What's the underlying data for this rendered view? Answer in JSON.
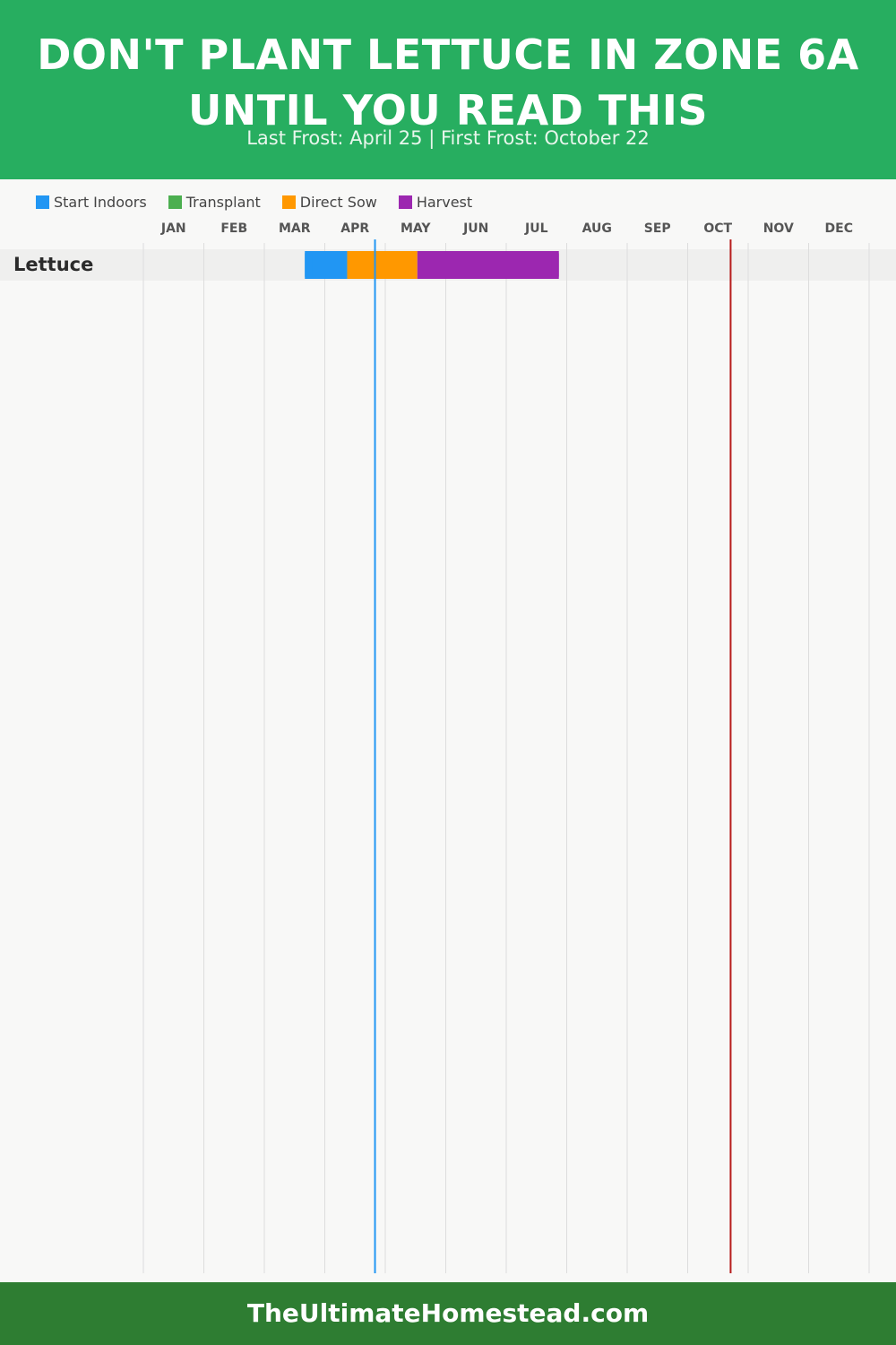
{
  "header": {
    "title": "DON'T PLANT LETTUCE IN ZONE 6A UNTIL YOU READ THIS",
    "subtitle": "Last Frost: April 25 | First Frost: October 22"
  },
  "legend": [
    {
      "label": "Start Indoors",
      "color": "#2196f3"
    },
    {
      "label": "Transplant",
      "color": "#4caf50"
    },
    {
      "label": "Direct Sow",
      "color": "#ff9800"
    },
    {
      "label": "Harvest",
      "color": "#9c27b0"
    }
  ],
  "chart_data": {
    "type": "gantt",
    "months": [
      "JAN",
      "FEB",
      "MAR",
      "APR",
      "MAY",
      "JUN",
      "JUL",
      "AUG",
      "SEP",
      "OCT",
      "NOV",
      "DEC"
    ],
    "x_unit": "month of year (1 = start of January, 13 = end of December)",
    "grid": true,
    "crops": [
      {
        "name": "Lettuce",
        "phases": [
          {
            "phase": "Start Indoors",
            "start": 3.67,
            "end": 4.37
          },
          {
            "phase": "Direct Sow",
            "start": 4.37,
            "end": 5.53
          },
          {
            "phase": "Harvest",
            "start": 5.53,
            "end": 7.87
          }
        ]
      }
    ],
    "frost_markers": [
      {
        "label": "Last Frost",
        "month_value": 4.83,
        "color": "#2196f3"
      },
      {
        "label": "First Frost",
        "month_value": 10.71,
        "color": "#b71c1c"
      }
    ]
  },
  "footer": {
    "site": "TheUltimateHomestead.com"
  }
}
